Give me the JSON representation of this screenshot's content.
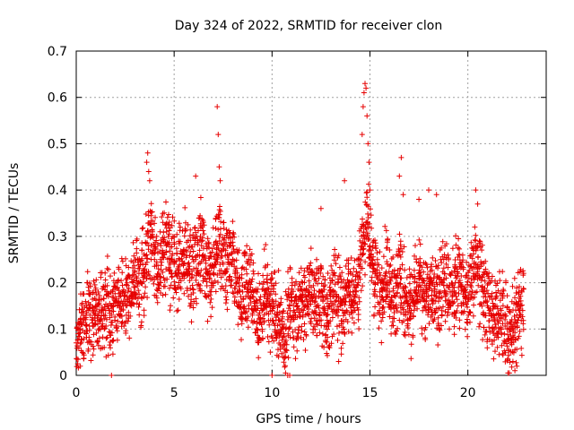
{
  "chart_data": {
    "type": "scatter",
    "title": "Day 324 of 2022, SRMTID for receiver clon",
    "xlabel": "GPS time / hours",
    "ylabel": "SRMTID / TECUs",
    "xlim": [
      0,
      24
    ],
    "ylim": [
      0,
      0.7
    ],
    "xticks": [
      0,
      5,
      10,
      15,
      20
    ],
    "yticks": [
      0,
      0.1,
      0.2,
      0.3,
      0.4,
      0.5,
      0.6,
      0.7
    ],
    "xtick_labels": [
      "0",
      "5",
      "10",
      "15",
      "20"
    ],
    "ytick_labels": [
      "0",
      "0.1",
      "0.2",
      "0.3",
      "0.4",
      "0.5",
      "0.6",
      "0.7"
    ],
    "grid": true,
    "marker": "+",
    "color": "#e60000",
    "series": [
      {
        "name": "SRMTID",
        "x": [
          0.0,
          0.1,
          0.2,
          0.3,
          0.4,
          0.5,
          0.6,
          0.7,
          0.8,
          0.9,
          1.0,
          1.1,
          1.2,
          1.3,
          1.4,
          1.5,
          1.6,
          1.7,
          1.8,
          1.9,
          2.0,
          2.1,
          2.2,
          2.3,
          2.4,
          2.5,
          2.6,
          2.7,
          2.8,
          2.9,
          3.0,
          3.1,
          3.2,
          3.3,
          3.4,
          3.5,
          3.6,
          3.7,
          3.8,
          3.9,
          4.0,
          4.1,
          4.2,
          4.3,
          4.4,
          4.5,
          4.6,
          4.7,
          4.8,
          4.9,
          5.0,
          5.1,
          5.2,
          5.3,
          5.4,
          5.5,
          5.6,
          5.7,
          5.8,
          5.9,
          6.0,
          6.1,
          6.2,
          6.3,
          6.4,
          6.5,
          6.6,
          6.7,
          6.8,
          6.9,
          7.0,
          7.1,
          7.2,
          7.3,
          7.4,
          7.5,
          7.6,
          7.7,
          7.8,
          7.9,
          8.0,
          8.1,
          8.2,
          8.3,
          8.4,
          8.5,
          8.6,
          8.7,
          8.8,
          8.9,
          9.0,
          9.1,
          9.2,
          9.3,
          9.4,
          9.5,
          9.6,
          9.7,
          9.8,
          9.9,
          10.0,
          10.1,
          10.2,
          10.3,
          10.4,
          10.5,
          10.6,
          10.7,
          10.8,
          10.9,
          11.0,
          11.1,
          11.2,
          11.3,
          11.4,
          11.5,
          11.6,
          11.7,
          11.8,
          11.9,
          12.0,
          12.1,
          12.2,
          12.3,
          12.4,
          12.5,
          12.6,
          12.7,
          12.8,
          12.9,
          13.0,
          13.1,
          13.2,
          13.3,
          13.4,
          13.5,
          13.6,
          13.7,
          13.8,
          13.9,
          14.0,
          14.1,
          14.2,
          14.3,
          14.4,
          14.5,
          14.6,
          14.7,
          14.8,
          14.9,
          15.0,
          15.1,
          15.2,
          15.3,
          15.4,
          15.5,
          15.6,
          15.7,
          15.8,
          15.9,
          16.0,
          16.1,
          16.2,
          16.3,
          16.4,
          16.5,
          16.6,
          16.7,
          16.8,
          16.9,
          17.0,
          17.1,
          17.2,
          17.3,
          17.4,
          17.5,
          17.6,
          17.7,
          17.8,
          17.9,
          18.0,
          18.1,
          18.2,
          18.3,
          18.4,
          18.5,
          18.6,
          18.7,
          18.8,
          18.9,
          19.0,
          19.1,
          19.2,
          19.3,
          19.4,
          19.5,
          19.6,
          19.7,
          19.8,
          19.9,
          20.0,
          20.1,
          20.2,
          20.3,
          20.4,
          20.5,
          20.6,
          20.7,
          20.8,
          20.9,
          21.0,
          21.1,
          21.2,
          21.3,
          21.4,
          21.5,
          21.6,
          21.7,
          21.8,
          21.9,
          22.0,
          22.1,
          22.2,
          22.3,
          22.4,
          22.5,
          22.6,
          22.7,
          22.8
        ],
        "y": [
          0.07,
          0.09,
          0.1,
          0.11,
          0.12,
          0.13,
          0.14,
          0.13,
          0.12,
          0.14,
          0.15,
          0.13,
          0.12,
          0.14,
          0.13,
          0.14,
          0.15,
          0.14,
          0.13,
          0.15,
          0.16,
          0.15,
          0.17,
          0.16,
          0.15,
          0.16,
          0.17,
          0.16,
          0.18,
          0.2,
          0.19,
          0.21,
          0.22,
          0.2,
          0.24,
          0.23,
          0.26,
          0.28,
          0.3,
          0.27,
          0.25,
          0.24,
          0.23,
          0.25,
          0.27,
          0.26,
          0.28,
          0.3,
          0.24,
          0.25,
          0.24,
          0.22,
          0.23,
          0.25,
          0.24,
          0.26,
          0.27,
          0.24,
          0.22,
          0.21,
          0.23,
          0.25,
          0.26,
          0.27,
          0.28,
          0.25,
          0.23,
          0.22,
          0.21,
          0.2,
          0.22,
          0.24,
          0.26,
          0.3,
          0.27,
          0.24,
          0.22,
          0.23,
          0.26,
          0.28,
          0.25,
          0.22,
          0.2,
          0.18,
          0.17,
          0.18,
          0.19,
          0.2,
          0.2,
          0.19,
          0.17,
          0.15,
          0.14,
          0.13,
          0.12,
          0.14,
          0.17,
          0.18,
          0.16,
          0.15,
          0.14,
          0.15,
          0.16,
          0.13,
          0.11,
          0.1,
          0.09,
          0.1,
          0.12,
          0.15,
          0.16,
          0.14,
          0.13,
          0.15,
          0.17,
          0.16,
          0.14,
          0.15,
          0.16,
          0.18,
          0.19,
          0.17,
          0.16,
          0.15,
          0.17,
          0.18,
          0.16,
          0.14,
          0.13,
          0.15,
          0.16,
          0.17,
          0.18,
          0.17,
          0.16,
          0.15,
          0.14,
          0.16,
          0.19,
          0.2,
          0.18,
          0.16,
          0.17,
          0.19,
          0.2,
          0.24,
          0.26,
          0.3,
          0.33,
          0.32,
          0.28,
          0.25,
          0.23,
          0.22,
          0.2,
          0.18,
          0.17,
          0.19,
          0.22,
          0.2,
          0.18,
          0.16,
          0.15,
          0.17,
          0.2,
          0.22,
          0.21,
          0.19,
          0.17,
          0.16,
          0.15,
          0.14,
          0.16,
          0.18,
          0.2,
          0.22,
          0.19,
          0.17,
          0.15,
          0.17,
          0.19,
          0.21,
          0.2,
          0.18,
          0.17,
          0.16,
          0.18,
          0.2,
          0.22,
          0.21,
          0.19,
          0.18,
          0.17,
          0.19,
          0.21,
          0.22,
          0.2,
          0.19,
          0.18,
          0.17,
          0.16,
          0.18,
          0.2,
          0.22,
          0.24,
          0.23,
          0.21,
          0.19,
          0.17,
          0.16,
          0.15,
          0.14,
          0.13,
          0.12,
          0.11,
          0.12,
          0.13,
          0.14,
          0.13,
          0.12,
          0.1,
          0.08,
          0.07,
          0.1,
          0.12,
          0.13,
          0.14,
          0.15,
          0.14
        ],
        "outliers": [
          {
            "x": 0.2,
            "y": 0.02
          },
          {
            "x": 0.55,
            "y": 0.2
          },
          {
            "x": 1.8,
            "y": 0.0
          },
          {
            "x": 3.6,
            "y": 0.46
          },
          {
            "x": 3.65,
            "y": 0.48
          },
          {
            "x": 3.7,
            "y": 0.44
          },
          {
            "x": 3.75,
            "y": 0.42
          },
          {
            "x": 6.1,
            "y": 0.43
          },
          {
            "x": 7.2,
            "y": 0.58
          },
          {
            "x": 7.25,
            "y": 0.52
          },
          {
            "x": 7.3,
            "y": 0.45
          },
          {
            "x": 7.35,
            "y": 0.42
          },
          {
            "x": 10.0,
            "y": 0.0
          },
          {
            "x": 10.8,
            "y": 0.0
          },
          {
            "x": 10.9,
            "y": 0.0
          },
          {
            "x": 12.5,
            "y": 0.36
          },
          {
            "x": 13.7,
            "y": 0.42
          },
          {
            "x": 13.4,
            "y": 0.03
          },
          {
            "x": 14.6,
            "y": 0.52
          },
          {
            "x": 14.65,
            "y": 0.58
          },
          {
            "x": 14.7,
            "y": 0.61
          },
          {
            "x": 14.75,
            "y": 0.63
          },
          {
            "x": 14.8,
            "y": 0.62
          },
          {
            "x": 14.85,
            "y": 0.56
          },
          {
            "x": 14.9,
            "y": 0.5
          },
          {
            "x": 14.95,
            "y": 0.46
          },
          {
            "x": 15.0,
            "y": 0.4
          },
          {
            "x": 16.5,
            "y": 0.43
          },
          {
            "x": 16.6,
            "y": 0.47
          },
          {
            "x": 16.7,
            "y": 0.39
          },
          {
            "x": 17.5,
            "y": 0.38
          },
          {
            "x": 18.0,
            "y": 0.4
          },
          {
            "x": 18.4,
            "y": 0.39
          },
          {
            "x": 20.4,
            "y": 0.4
          },
          {
            "x": 20.5,
            "y": 0.37
          },
          {
            "x": 22.3,
            "y": 0.03
          },
          {
            "x": 22.4,
            "y": 0.01
          },
          {
            "x": 22.5,
            "y": 0.02
          },
          {
            "x": 22.6,
            "y": 0.18
          }
        ]
      }
    ]
  }
}
